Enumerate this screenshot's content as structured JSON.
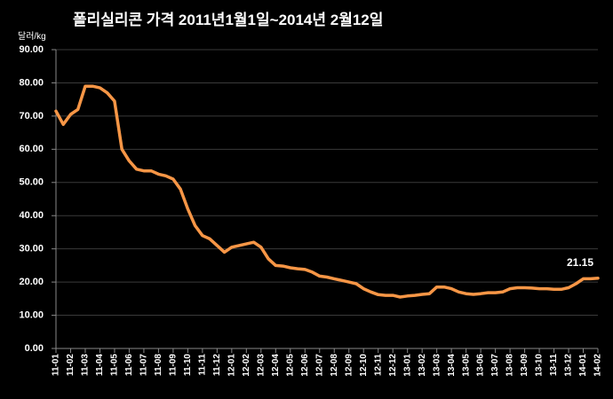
{
  "chart_data": {
    "type": "line",
    "title": "폴리실리콘 가격    2011년1월1일~2014년 2월12일",
    "y_label": "달러/kg",
    "categories": [
      "11-01",
      null,
      "11-02",
      null,
      "11-03",
      null,
      "11-04",
      null,
      "11-05",
      null,
      "11-06",
      null,
      "11-07",
      null,
      "11-08",
      null,
      "11-09",
      null,
      "11-10",
      null,
      "11-11",
      null,
      "11-12",
      null,
      "12-01",
      null,
      "12-02",
      null,
      "12-03",
      null,
      "12-04",
      null,
      "12-05",
      null,
      "12-06",
      null,
      "12-07",
      null,
      "12-08",
      null,
      "12-09",
      null,
      "12-10",
      null,
      "12-11",
      null,
      "12-12",
      null,
      "13-01",
      null,
      "13-02",
      null,
      "13-03",
      null,
      "13-04",
      null,
      "13-05",
      null,
      "13-06",
      null,
      "13-07",
      null,
      "13-08",
      null,
      "13-09",
      null,
      "13-10",
      null,
      "13-11",
      null,
      "13-12",
      null,
      "14-01",
      null,
      "14-02"
    ],
    "values": [
      71.5,
      67.5,
      70.5,
      72,
      79,
      79,
      78.5,
      77,
      74.5,
      60,
      56.5,
      54,
      53.5,
      53.5,
      52.5,
      52,
      51,
      48,
      42,
      37,
      34,
      33,
      31,
      29,
      30.5,
      31,
      31.5,
      32,
      30.5,
      27,
      25,
      24.8,
      24.3,
      24,
      23.8,
      23,
      21.8,
      21.5,
      21,
      20.5,
      20,
      19.5,
      18,
      17,
      16.2,
      16,
      16,
      15.5,
      15.8,
      16,
      16.3,
      16.5,
      18.5,
      18.5,
      18,
      17,
      16.5,
      16.3,
      16.5,
      16.8,
      16.8,
      17,
      18,
      18.3,
      18.3,
      18.2,
      18,
      18,
      17.8,
      17.8,
      18.3,
      19.5,
      21,
      21,
      21.15
    ],
    "value_labels": [
      null,
      null,
      null,
      null,
      null,
      null,
      null,
      null,
      null,
      null,
      null,
      null,
      null,
      null,
      null,
      null,
      null,
      null,
      null,
      null,
      null,
      null,
      null,
      null,
      null,
      null,
      null,
      null,
      null,
      null,
      null,
      null,
      null,
      null,
      null,
      null,
      null,
      null,
      null,
      null,
      null,
      null,
      null,
      null,
      null,
      null,
      null,
      null,
      null,
      null,
      null,
      null,
      null,
      null,
      null,
      null,
      null,
      null,
      null,
      null,
      null,
      null,
      null,
      null,
      null,
      null,
      null,
      null,
      null,
      null,
      null,
      null,
      null,
      null,
      "21.15"
    ],
    "color": "#f79646",
    "ylim": [
      0,
      90
    ],
    "yticks": [
      {
        "value": 0,
        "label": "0.00"
      },
      {
        "value": 10,
        "label": "10.00"
      },
      {
        "value": 20,
        "label": "20.00"
      },
      {
        "value": 30,
        "label": "30.00"
      },
      {
        "value": 40,
        "label": "40.00"
      },
      {
        "value": 50,
        "label": "50.00"
      },
      {
        "value": 60,
        "label": "60.00"
      },
      {
        "value": 70,
        "label": "70.00"
      },
      {
        "value": 80,
        "label": "80.00"
      },
      {
        "value": 90,
        "label": "90.00"
      }
    ],
    "grid": true
  }
}
